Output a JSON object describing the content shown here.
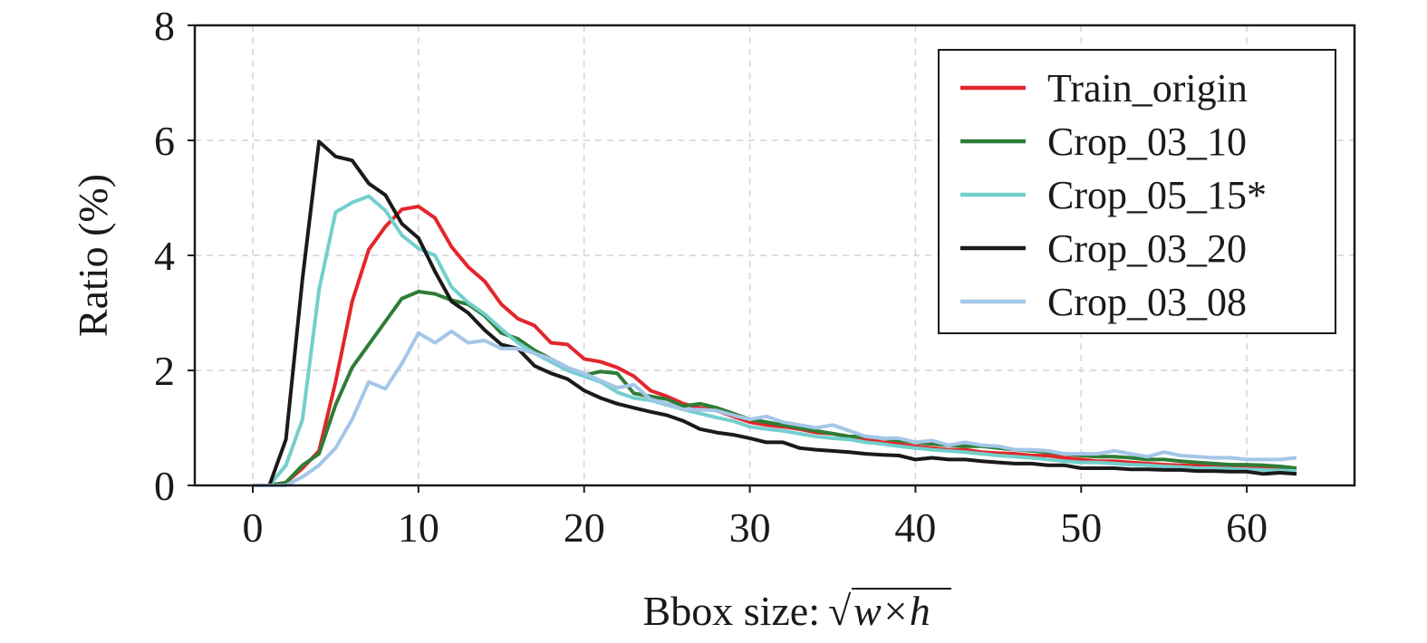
{
  "chart_data": {
    "type": "line",
    "xlabel": "Bbox size:",
    "xlabel_math": {
      "radical": "√",
      "expr": "w×h"
    },
    "ylabel": "Ratio (%)",
    "xlim": [
      -3.5,
      66.5
    ],
    "ylim": [
      0,
      8
    ],
    "xticks": [
      0,
      10,
      20,
      30,
      40,
      50,
      60
    ],
    "yticks": [
      0,
      2,
      4,
      6,
      8
    ],
    "grid": true,
    "legend_position": "top-right",
    "x": [
      0,
      1,
      2,
      3,
      4,
      5,
      6,
      7,
      8,
      9,
      10,
      11,
      12,
      13,
      14,
      15,
      16,
      17,
      18,
      19,
      20,
      21,
      22,
      23,
      24,
      25,
      26,
      27,
      28,
      29,
      30,
      31,
      32,
      33,
      34,
      35,
      36,
      37,
      38,
      39,
      40,
      41,
      42,
      43,
      44,
      45,
      46,
      47,
      48,
      49,
      50,
      51,
      52,
      53,
      54,
      55,
      56,
      57,
      58,
      59,
      60,
      61,
      62,
      63
    ],
    "series": [
      {
        "name": "Train_origin",
        "color": "#e3262b",
        "values": [
          0,
          0,
          0.05,
          0.3,
          0.6,
          1.8,
          3.2,
          4.1,
          4.5,
          4.8,
          4.85,
          4.65,
          4.15,
          3.8,
          3.55,
          3.15,
          2.9,
          2.78,
          2.48,
          2.45,
          2.2,
          2.15,
          2.05,
          1.9,
          1.65,
          1.55,
          1.42,
          1.35,
          1.3,
          1.2,
          1.1,
          1.05,
          1.02,
          0.98,
          0.92,
          0.9,
          0.85,
          0.8,
          0.75,
          0.72,
          0.68,
          0.65,
          0.62,
          0.62,
          0.58,
          0.56,
          0.55,
          0.52,
          0.52,
          0.48,
          0.45,
          0.42,
          0.42,
          0.4,
          0.38,
          0.36,
          0.35,
          0.34,
          0.33,
          0.32,
          0.31,
          0.3,
          0.28,
          0.26
        ]
      },
      {
        "name": "Crop_03_10",
        "color": "#2e7d35",
        "values": [
          0,
          0,
          0.05,
          0.35,
          0.55,
          1.4,
          2.05,
          2.45,
          2.85,
          3.25,
          3.37,
          3.33,
          3.22,
          3.15,
          2.95,
          2.65,
          2.55,
          2.35,
          2.2,
          2.05,
          1.92,
          1.98,
          1.95,
          1.6,
          1.55,
          1.5,
          1.38,
          1.42,
          1.35,
          1.25,
          1.15,
          1.1,
          1.05,
          1,
          0.95,
          0.9,
          0.85,
          0.85,
          0.82,
          0.78,
          0.75,
          0.72,
          0.7,
          0.68,
          0.68,
          0.65,
          0.62,
          0.6,
          0.58,
          0.55,
          0.52,
          0.5,
          0.5,
          0.48,
          0.45,
          0.45,
          0.42,
          0.4,
          0.38,
          0.36,
          0.36,
          0.35,
          0.33,
          0.3
        ]
      },
      {
        "name": "Crop_05_15*",
        "color": "#72cfcc",
        "values": [
          0,
          0,
          0.35,
          1.15,
          3.4,
          4.75,
          4.92,
          5.03,
          4.78,
          4.35,
          4.12,
          4.0,
          3.45,
          3.18,
          2.98,
          2.72,
          2.48,
          2.3,
          2.15,
          2.0,
          1.9,
          1.8,
          1.62,
          1.52,
          1.48,
          1.4,
          1.32,
          1.25,
          1.18,
          1.12,
          1.02,
          0.98,
          0.95,
          0.9,
          0.85,
          0.82,
          0.8,
          0.75,
          0.72,
          0.68,
          0.65,
          0.62,
          0.6,
          0.58,
          0.55,
          0.52,
          0.5,
          0.48,
          0.45,
          0.42,
          0.4,
          0.4,
          0.38,
          0.36,
          0.35,
          0.33,
          0.32,
          0.3,
          0.3,
          0.29,
          0.28,
          0.27,
          0.26,
          0.25
        ]
      },
      {
        "name": "Crop_03_20",
        "color": "#1a1a1a",
        "values": [
          0,
          0,
          0.8,
          3.6,
          5.98,
          5.72,
          5.65,
          5.25,
          5.05,
          4.55,
          4.3,
          3.72,
          3.2,
          3.0,
          2.7,
          2.45,
          2.38,
          2.08,
          1.95,
          1.85,
          1.65,
          1.52,
          1.42,
          1.35,
          1.28,
          1.22,
          1.12,
          0.98,
          0.92,
          0.88,
          0.82,
          0.75,
          0.75,
          0.65,
          0.62,
          0.6,
          0.58,
          0.55,
          0.53,
          0.52,
          0.45,
          0.48,
          0.45,
          0.45,
          0.42,
          0.4,
          0.38,
          0.38,
          0.35,
          0.35,
          0.3,
          0.3,
          0.3,
          0.28,
          0.28,
          0.27,
          0.27,
          0.25,
          0.25,
          0.24,
          0.24,
          0.2,
          0.22,
          0.2
        ]
      },
      {
        "name": "Crop_03_08",
        "color": "#a4c6e8",
        "values": [
          0,
          0,
          0,
          0.15,
          0.35,
          0.65,
          1.15,
          1.8,
          1.68,
          2.12,
          2.65,
          2.48,
          2.68,
          2.48,
          2.52,
          2.38,
          2.38,
          2.3,
          2.2,
          2.05,
          1.95,
          1.82,
          1.7,
          1.75,
          1.5,
          1.42,
          1.32,
          1.32,
          1.3,
          1.22,
          1.15,
          1.2,
          1.1,
          1.05,
          1.0,
          1.05,
          0.95,
          0.85,
          0.82,
          0.82,
          0.75,
          0.78,
          0.7,
          0.75,
          0.7,
          0.68,
          0.62,
          0.62,
          0.6,
          0.55,
          0.55,
          0.55,
          0.6,
          0.55,
          0.5,
          0.58,
          0.52,
          0.5,
          0.48,
          0.48,
          0.45,
          0.45,
          0.45,
          0.48
        ]
      }
    ]
  }
}
